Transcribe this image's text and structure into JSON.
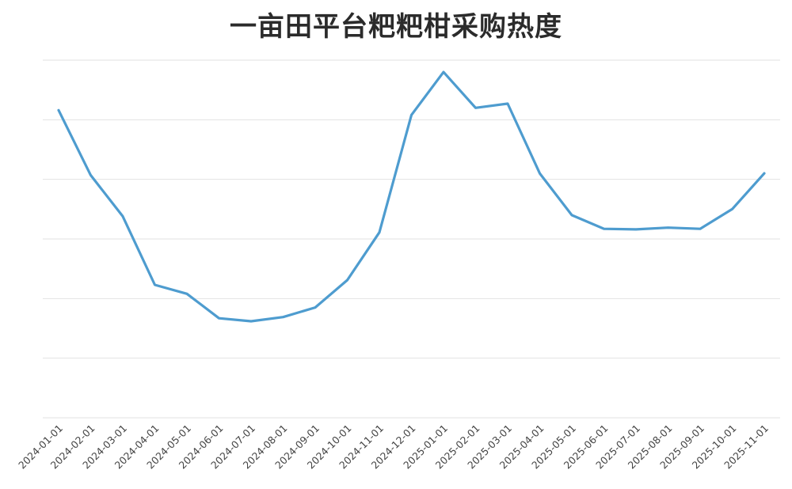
{
  "chart_data": {
    "type": "line",
    "title": "一亩田平台粑粑柑采购热度",
    "xlabel": "",
    "ylabel": "",
    "y_tick_labels_shown": false,
    "grid": true,
    "legend": "none",
    "ylim": [
      0,
      6
    ],
    "x": [
      "2024-01-01",
      "2024-02-01",
      "2024-03-01",
      "2024-04-01",
      "2024-05-01",
      "2024-06-01",
      "2024-07-01",
      "2024-08-01",
      "2024-09-01",
      "2024-10-01",
      "2024-11-01",
      "2024-12-01",
      "2025-01-01",
      "2025-02-01",
      "2025-03-01",
      "2025-04-01",
      "2025-05-01",
      "2025-06-01",
      "2025-07-01",
      "2025-08-01",
      "2025-09-01",
      "2025-10-01",
      "2025-11-01"
    ],
    "series": [
      {
        "color": "#4e9ccf",
        "values": [
          5.16,
          4.07,
          3.38,
          2.23,
          2.08,
          1.67,
          1.62,
          1.69,
          1.85,
          2.31,
          3.11,
          5.08,
          5.8,
          5.2,
          5.27,
          4.1,
          3.4,
          3.17,
          3.16,
          3.19,
          3.17,
          3.5,
          4.1
        ]
      }
    ]
  }
}
